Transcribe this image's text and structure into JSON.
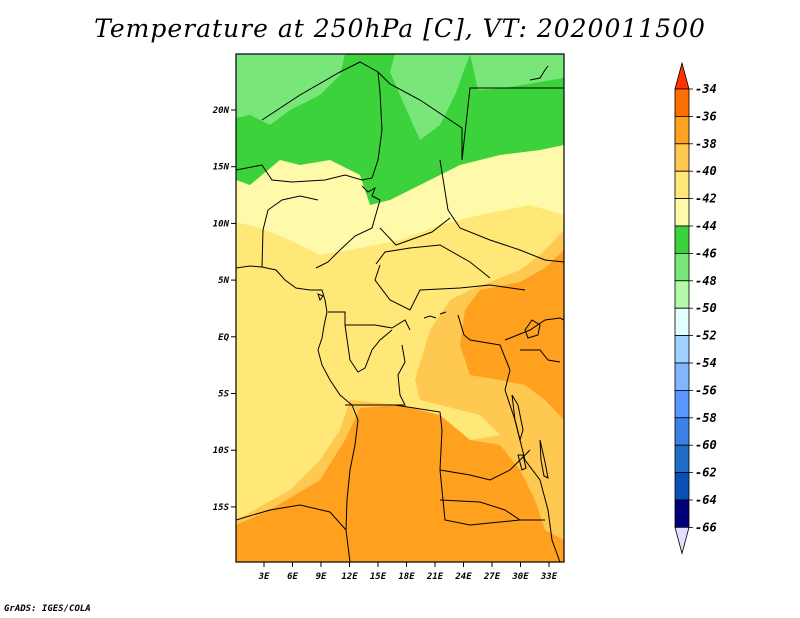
{
  "title": "Temperature at 250hPa [C], VT: 2020011500",
  "credit": "GrADS: IGES/COLA",
  "map": {
    "lon_labels": [
      "3E",
      "6E",
      "9E",
      "12E",
      "15E",
      "18E",
      "21E",
      "24E",
      "27E",
      "30E",
      "33E"
    ],
    "lat_labels": [
      "20N",
      "15N",
      "10N",
      "5N",
      "EQ",
      "5S",
      "10S",
      "15S"
    ],
    "colors": {
      "c-46-44": "#3cd23c",
      "c-48-46": "#78e678",
      "c-44-42": "#fffaaa",
      "c-42-40": "#ffe878",
      "c-40-38": "#ffc850",
      "c-38-36": "#ffa01e"
    }
  },
  "colorbar": {
    "labels": [
      "-34",
      "-36",
      "-38",
      "-40",
      "-42",
      "-44",
      "-46",
      "-48",
      "-50",
      "-52",
      "-54",
      "-56",
      "-58",
      "-60",
      "-62",
      "-64",
      "-66"
    ],
    "colors": [
      "#ff3200",
      "#ff6e00",
      "#ffa01e",
      "#ffc850",
      "#ffe878",
      "#fffaaa",
      "#3cd23c",
      "#78e678",
      "#b4faaa",
      "#e1ffff",
      "#a0d2ff",
      "#82b4ff",
      "#5a96ff",
      "#3c82e6",
      "#1e6ec8",
      "#0a50b4",
      "#000078",
      "#e1e1ff"
    ]
  }
}
